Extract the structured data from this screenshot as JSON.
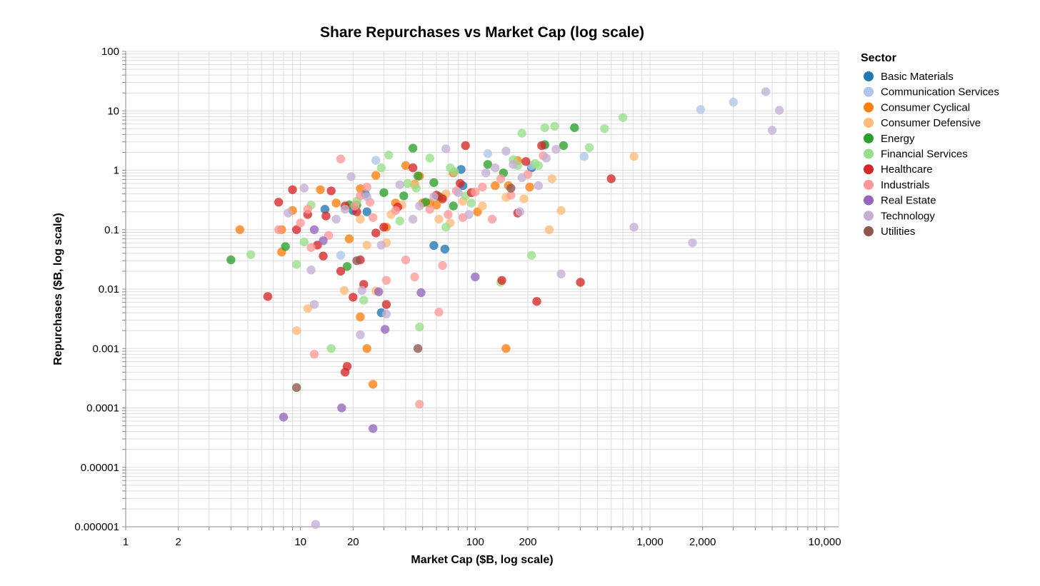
{
  "chart_data": {
    "type": "scatter",
    "title": "Share Repurchases vs Market Cap (log scale)",
    "xlabel": "Market Cap ($B, log scale)",
    "ylabel": "Repurchases ($B, log scale)",
    "xscale": "log",
    "yscale": "log",
    "xlim": [
      1,
      12000
    ],
    "ylim": [
      1e-06,
      100
    ],
    "grid": true,
    "x_ticks": [
      {
        "value": 1,
        "label": "1"
      },
      {
        "value": 2,
        "label": "2"
      },
      {
        "value": 10,
        "label": "10"
      },
      {
        "value": 20,
        "label": "20"
      },
      {
        "value": 100,
        "label": "100"
      },
      {
        "value": 200,
        "label": "200"
      },
      {
        "value": 1000,
        "label": "1,000"
      },
      {
        "value": 2000,
        "label": "2,000"
      },
      {
        "value": 10000,
        "label": "10,000"
      }
    ],
    "y_ticks": [
      {
        "value": 100,
        "label": "100"
      },
      {
        "value": 10,
        "label": "10"
      },
      {
        "value": 1,
        "label": "1"
      },
      {
        "value": 0.1,
        "label": "0.1"
      },
      {
        "value": 0.01,
        "label": "0.01"
      },
      {
        "value": 0.001,
        "label": "0.001"
      },
      {
        "value": 0.0001,
        "label": "0.0001"
      },
      {
        "value": 1e-05,
        "label": "0.00001"
      },
      {
        "value": 1e-06,
        "label": "0.000001"
      }
    ],
    "legend": {
      "title": "Sector",
      "position": "right"
    },
    "series": [
      {
        "name": "Basic Materials",
        "color": "#1f77b4",
        "points": [
          [
            13.8,
            0.22
          ],
          [
            20,
            0.21
          ],
          [
            23.5,
            0.4
          ],
          [
            24,
            0.2
          ],
          [
            29,
            0.004
          ],
          [
            58,
            0.054
          ],
          [
            67,
            0.047
          ],
          [
            83,
            1.03
          ],
          [
            85,
            0.55
          ],
          [
            210,
            1.1
          ]
        ]
      },
      {
        "name": "Communication Services",
        "color": "#aec7e8",
        "points": [
          [
            17,
            0.037
          ],
          [
            27,
            1.47
          ],
          [
            118,
            1.9
          ],
          [
            250,
            2.6
          ],
          [
            210,
            1.2
          ],
          [
            420,
            1.7
          ],
          [
            1950,
            10.5
          ],
          [
            3000,
            14
          ]
        ]
      },
      {
        "name": "Consumer Cyclical",
        "color": "#ff7f0e",
        "points": [
          [
            4.5,
            0.1
          ],
          [
            7.8,
            0.1
          ],
          [
            7.8,
            0.042
          ],
          [
            9,
            0.21
          ],
          [
            13,
            0.47
          ],
          [
            16,
            0.28
          ],
          [
            19,
            0.07
          ],
          [
            22,
            0.0034
          ],
          [
            22,
            0.49
          ],
          [
            24,
            0.001
          ],
          [
            26,
            0.00025
          ],
          [
            27,
            0.82
          ],
          [
            31,
            0.11
          ],
          [
            35,
            0.28
          ],
          [
            40,
            1.2
          ],
          [
            45,
            0.58
          ],
          [
            48,
            0.8
          ],
          [
            50,
            0.28
          ],
          [
            55,
            0.28
          ],
          [
            60,
            0.26
          ],
          [
            65,
            0.35
          ],
          [
            75,
            0.9
          ],
          [
            103,
            0.2
          ],
          [
            130,
            0.55
          ],
          [
            150,
            0.001
          ],
          [
            155,
            0.55
          ],
          [
            175,
            1.45
          ],
          [
            205,
            0.52
          ]
        ]
      },
      {
        "name": "Consumer Defensive",
        "color": "#ffbb78",
        "points": [
          [
            9.5,
            0.002
          ],
          [
            11,
            0.0047
          ],
          [
            17.8,
            0.0095
          ],
          [
            22,
            0.15
          ],
          [
            24,
            0.055
          ],
          [
            27,
            0.0093
          ],
          [
            31,
            0.06
          ],
          [
            33,
            0.18
          ],
          [
            38,
            0.26
          ],
          [
            45,
            0.56
          ],
          [
            62,
            0.15
          ],
          [
            68,
            0.4
          ],
          [
            72,
            0.13
          ],
          [
            85,
            0.3
          ],
          [
            110,
            0.25
          ],
          [
            150,
            0.35
          ],
          [
            190,
            0.33
          ],
          [
            265,
            0.1
          ],
          [
            275,
            0.72
          ],
          [
            310,
            0.21
          ],
          [
            810,
            1.7
          ]
        ]
      },
      {
        "name": "Energy",
        "color": "#2ca02c",
        "points": [
          [
            4,
            0.031
          ],
          [
            8.2,
            0.052
          ],
          [
            18.5,
            0.024
          ],
          [
            19,
            0.26
          ],
          [
            21,
            0.26
          ],
          [
            30,
            0.42
          ],
          [
            39,
            0.37
          ],
          [
            44,
            2.35
          ],
          [
            47,
            0.8
          ],
          [
            52,
            0.29
          ],
          [
            58,
            0.62
          ],
          [
            62,
            0.36
          ],
          [
            75,
            0.25
          ],
          [
            118,
            1.25
          ],
          [
            145,
            0.9
          ],
          [
            250,
            2.7
          ],
          [
            370,
            5.2
          ],
          [
            320,
            2.6
          ]
        ]
      },
      {
        "name": "Financial Services",
        "color": "#98df8a",
        "points": [
          [
            5.2,
            0.038
          ],
          [
            9.5,
            0.026
          ],
          [
            10.5,
            0.062
          ],
          [
            11.5,
            0.26
          ],
          [
            21,
            0.3
          ],
          [
            23,
            0.0065
          ],
          [
            29,
            1.1
          ],
          [
            32,
            1.8
          ],
          [
            37,
            0.14
          ],
          [
            41,
            0.6
          ],
          [
            46,
            0.5
          ],
          [
            55,
            1.6
          ],
          [
            68,
            0.11
          ],
          [
            72,
            1.1
          ],
          [
            76,
            0.95
          ],
          [
            88,
            0.37
          ],
          [
            95,
            0.28
          ],
          [
            140,
            0.013
          ],
          [
            165,
            1.5
          ],
          [
            175,
            1.2
          ],
          [
            185,
            4.2
          ],
          [
            210,
            0.037
          ],
          [
            220,
            1.3
          ],
          [
            230,
            1.2
          ],
          [
            250,
            5.2
          ],
          [
            285,
            5.5
          ],
          [
            450,
            2.4
          ],
          [
            550,
            5.0
          ],
          [
            700,
            7.7
          ],
          [
            15,
            0.001
          ],
          [
            48,
            0.0023
          ]
        ]
      },
      {
        "name": "Healthcare",
        "color": "#d62728",
        "points": [
          [
            6.5,
            0.0075
          ],
          [
            7.5,
            0.29
          ],
          [
            9,
            0.47
          ],
          [
            9.5,
            0.1
          ],
          [
            11,
            0.18
          ],
          [
            12.5,
            0.055
          ],
          [
            13.5,
            0.036
          ],
          [
            14,
            0.17
          ],
          [
            15,
            0.45
          ],
          [
            17,
            0.02
          ],
          [
            18,
            0.25
          ],
          [
            18,
            0.0004
          ],
          [
            18.5,
            0.0005
          ],
          [
            20,
            0.0073
          ],
          [
            21,
            0.2
          ],
          [
            22,
            0.031
          ],
          [
            23,
            0.012
          ],
          [
            27,
            0.088
          ],
          [
            30,
            0.11
          ],
          [
            31,
            0.0055
          ],
          [
            36,
            0.24
          ],
          [
            44,
            1.1
          ],
          [
            60,
            0.38
          ],
          [
            65,
            0.33
          ],
          [
            82,
            0.6
          ],
          [
            88,
            2.6
          ],
          [
            95,
            0.42
          ],
          [
            142,
            0.014
          ],
          [
            175,
            0.19
          ],
          [
            195,
            1.4
          ],
          [
            225,
            0.0062
          ],
          [
            240,
            2.6
          ],
          [
            400,
            0.013
          ],
          [
            600,
            0.72
          ]
        ]
      },
      {
        "name": "Industrials",
        "color": "#ff9896",
        "points": [
          [
            7.5,
            0.1
          ],
          [
            10,
            0.13
          ],
          [
            11,
            0.22
          ],
          [
            11.5,
            0.05
          ],
          [
            12,
            0.0008
          ],
          [
            14.5,
            0.08
          ],
          [
            17,
            1.55
          ],
          [
            20.5,
            0.25
          ],
          [
            22,
            0.37
          ],
          [
            24,
            0.52
          ],
          [
            25,
            0.29
          ],
          [
            26,
            0.16
          ],
          [
            31,
            0.014
          ],
          [
            35,
            0.21
          ],
          [
            40,
            0.031
          ],
          [
            45,
            0.016
          ],
          [
            55,
            0.22
          ],
          [
            62,
            0.0041
          ],
          [
            65,
            0.025
          ],
          [
            70,
            0.18
          ],
          [
            78,
            0.45
          ],
          [
            85,
            0.16
          ],
          [
            100,
            0.43
          ],
          [
            110,
            0.52
          ],
          [
            125,
            0.15
          ],
          [
            140,
            0.72
          ],
          [
            160,
            0.38
          ],
          [
            200,
            0.85
          ],
          [
            245,
            1.75
          ],
          [
            48,
            0.000115
          ]
        ]
      },
      {
        "name": "Real Estate",
        "color": "#9467bd",
        "points": [
          [
            8,
            7e-05
          ],
          [
            12,
            0.1
          ],
          [
            13.5,
            0.065
          ],
          [
            17.2,
            0.0001
          ],
          [
            26,
            4.5e-05
          ],
          [
            28,
            0.009
          ],
          [
            30.5,
            0.0021
          ],
          [
            49,
            0.0087
          ],
          [
            100,
            0.016
          ]
        ]
      },
      {
        "name": "Technology",
        "color": "#c5b0d5",
        "points": [
          [
            8.5,
            0.19
          ],
          [
            10.5,
            0.5
          ],
          [
            11.5,
            0.021
          ],
          [
            12,
            0.0055
          ],
          [
            12.2,
            1.1e-06
          ],
          [
            16,
            0.15
          ],
          [
            18,
            0.22
          ],
          [
            19.5,
            0.78
          ],
          [
            22,
            0.0017
          ],
          [
            22.5,
            0.0095
          ],
          [
            24,
            0.36
          ],
          [
            29,
            0.055
          ],
          [
            31,
            0.0038
          ],
          [
            37,
            0.57
          ],
          [
            44,
            0.15
          ],
          [
            48,
            0.25
          ],
          [
            58,
            0.36
          ],
          [
            68,
            2.3
          ],
          [
            80,
            0.42
          ],
          [
            92,
            0.18
          ],
          [
            115,
            0.9
          ],
          [
            130,
            1.1
          ],
          [
            150,
            2.1
          ],
          [
            165,
            1.25
          ],
          [
            180,
            0.2
          ],
          [
            185,
            0.75
          ],
          [
            230,
            0.55
          ],
          [
            255,
            1.6
          ],
          [
            290,
            2.25
          ],
          [
            310,
            0.018
          ],
          [
            810,
            0.11
          ],
          [
            1750,
            0.06
          ],
          [
            4600,
            21
          ],
          [
            5000,
            4.7
          ],
          [
            5500,
            10.2
          ]
        ]
      },
      {
        "name": "Utilities",
        "color": "#8c564b",
        "points": [
          [
            9.5,
            0.00022
          ],
          [
            21,
            0.03
          ],
          [
            47,
            0.001
          ],
          [
            160,
            0.5
          ]
        ]
      }
    ]
  }
}
